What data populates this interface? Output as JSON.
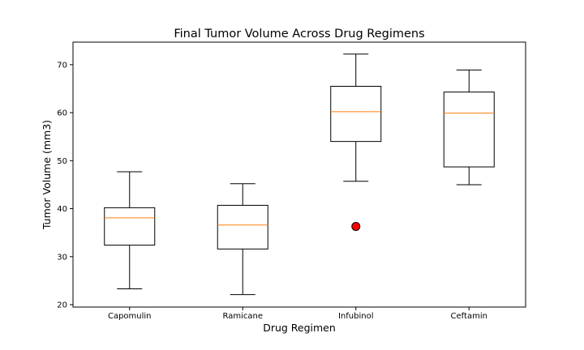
{
  "chart_data": {
    "type": "box",
    "title": "Final Tumor Volume Across Drug Regimens",
    "xlabel": "Drug Regimen",
    "ylabel": "Tumor Volume (mm3)",
    "categories": [
      "Capomulin",
      "Ramicane",
      "Infubinol",
      "Ceftamin"
    ],
    "ylim": [
      19.5,
      74.7
    ],
    "yticks": [
      20,
      30,
      40,
      50,
      60,
      70
    ],
    "boxes": [
      {
        "name": "Capomulin",
        "whisker_low": 23.3,
        "q1": 32.4,
        "median": 38.1,
        "q3": 40.2,
        "whisker_high": 47.7,
        "outliers": []
      },
      {
        "name": "Ramicane",
        "whisker_low": 22.1,
        "q1": 31.6,
        "median": 36.6,
        "q3": 40.7,
        "whisker_high": 45.2,
        "outliers": []
      },
      {
        "name": "Infubinol",
        "whisker_low": 45.7,
        "q1": 54.0,
        "median": 60.2,
        "q3": 65.5,
        "whisker_high": 72.2,
        "outliers": [
          36.3
        ]
      },
      {
        "name": "Ceftamin",
        "whisker_low": 45.0,
        "q1": 48.7,
        "median": 59.9,
        "q3": 64.3,
        "whisker_high": 68.9,
        "outliers": []
      }
    ],
    "grid": false,
    "legend": "none",
    "colors": {
      "box": "#000000",
      "median": "#ff7f0e",
      "outlier_fill": "#ff0000",
      "outlier_edge": "#000000"
    }
  }
}
